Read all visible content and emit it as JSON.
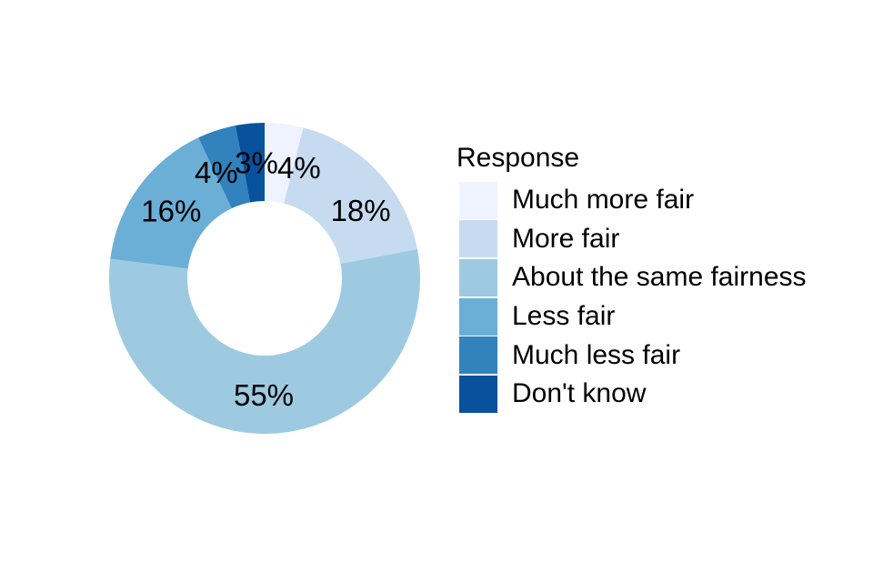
{
  "chart_data": {
    "type": "pie",
    "subtype": "donut",
    "title": "",
    "legend_title": "Response",
    "legend_position": "right",
    "categories": [
      "Much more fair",
      "More fair",
      "About the same fairness",
      "Less fair",
      "Much less fair",
      "Don't know"
    ],
    "values": [
      4,
      18,
      55,
      16,
      4,
      3
    ],
    "labels": [
      "4%",
      "18%",
      "55%",
      "16%",
      "4%",
      "3%"
    ],
    "colors": [
      "#EFF3FF",
      "#C6DBEF",
      "#9ECAE1",
      "#6BAED6",
      "#3182BD",
      "#08519C"
    ],
    "start_angle_deg": 0,
    "direction": "clockwise",
    "label_color": "#000000",
    "background_color": "#FFFFFF"
  }
}
